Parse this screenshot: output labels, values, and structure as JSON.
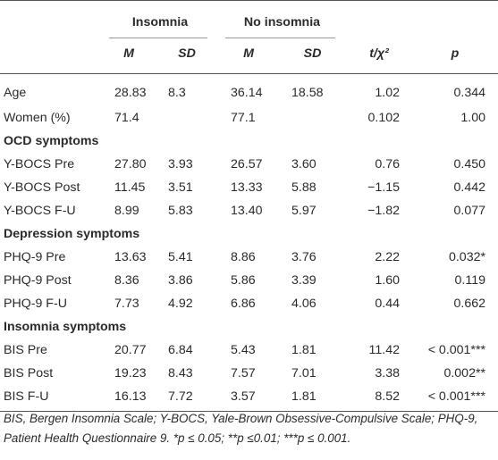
{
  "header": {
    "group_insomnia": "Insomnia",
    "group_no_insomnia": "No insomnia",
    "col_m1": "M",
    "col_sd1": "SD",
    "col_m2": "M",
    "col_sd2": "SD",
    "col_stat": "t/χ²",
    "col_p": "p"
  },
  "rows_general": [
    {
      "label": "Age",
      "m1": "28.83",
      "sd1": "8.3",
      "m2": "36.14",
      "sd2": "18.58",
      "stat": "1.02",
      "p": "0.344"
    },
    {
      "label": "Women (%)",
      "m1": "71.4",
      "sd1": "",
      "m2": "77.1",
      "sd2": "",
      "stat": "0.102",
      "p": "1.00"
    }
  ],
  "section_ocd": {
    "title": "OCD symptoms",
    "rows": [
      {
        "label": "Y-BOCS Pre",
        "m1": "27.80",
        "sd1": "3.93",
        "m2": "26.57",
        "sd2": "3.60",
        "stat": "0.76",
        "p": "0.450"
      },
      {
        "label": "Y-BOCS Post",
        "m1": "11.45",
        "sd1": "3.51",
        "m2": "13.33",
        "sd2": "5.88",
        "stat": "−1.15",
        "p": "0.442"
      },
      {
        "label": "Y-BOCS F-U",
        "m1": "8.99",
        "sd1": "5.83",
        "m2": "13.40",
        "sd2": "5.97",
        "stat": "−1.82",
        "p": "0.077"
      }
    ]
  },
  "section_dep": {
    "title": "Depression symptoms",
    "rows": [
      {
        "label": "PHQ-9 Pre",
        "m1": "13.63",
        "sd1": "5.41",
        "m2": "8.86",
        "sd2": "3.76",
        "stat": "2.22",
        "p": "0.032*"
      },
      {
        "label": "PHQ-9 Post",
        "m1": "8.36",
        "sd1": "3.86",
        "m2": "5.86",
        "sd2": "3.39",
        "stat": "1.60",
        "p": "0.119"
      },
      {
        "label": "PHQ-9 F-U",
        "m1": "7.73",
        "sd1": "4.92",
        "m2": "6.86",
        "sd2": "4.06",
        "stat": "0.44",
        "p": "0.662"
      }
    ]
  },
  "section_ins": {
    "title": "Insomnia symptoms",
    "rows": [
      {
        "label": "BIS Pre",
        "m1": "20.77",
        "sd1": "6.84",
        "m2": "5.43",
        "sd2": "1.81",
        "stat": "11.42",
        "p": "< 0.001***"
      },
      {
        "label": "BIS Post",
        "m1": "19.23",
        "sd1": "8.43",
        "m2": "7.57",
        "sd2": "7.01",
        "stat": "3.38",
        "p": "0.002**"
      },
      {
        "label": "BIS F-U",
        "m1": "16.13",
        "sd1": "7.72",
        "m2": "3.57",
        "sd2": "1.81",
        "stat": "8.52",
        "p": "< 0.001***"
      }
    ]
  },
  "footnote": {
    "line1": "BIS, Bergen Insomnia Scale; Y-BOCS, Yale-Brown Obsessive-Compulsive Scale; PHQ-9,",
    "line2": "Patient Health Questionnaire 9. *p ≤ 0.05; **p ≤0.01; ***p ≤ 0.001."
  }
}
